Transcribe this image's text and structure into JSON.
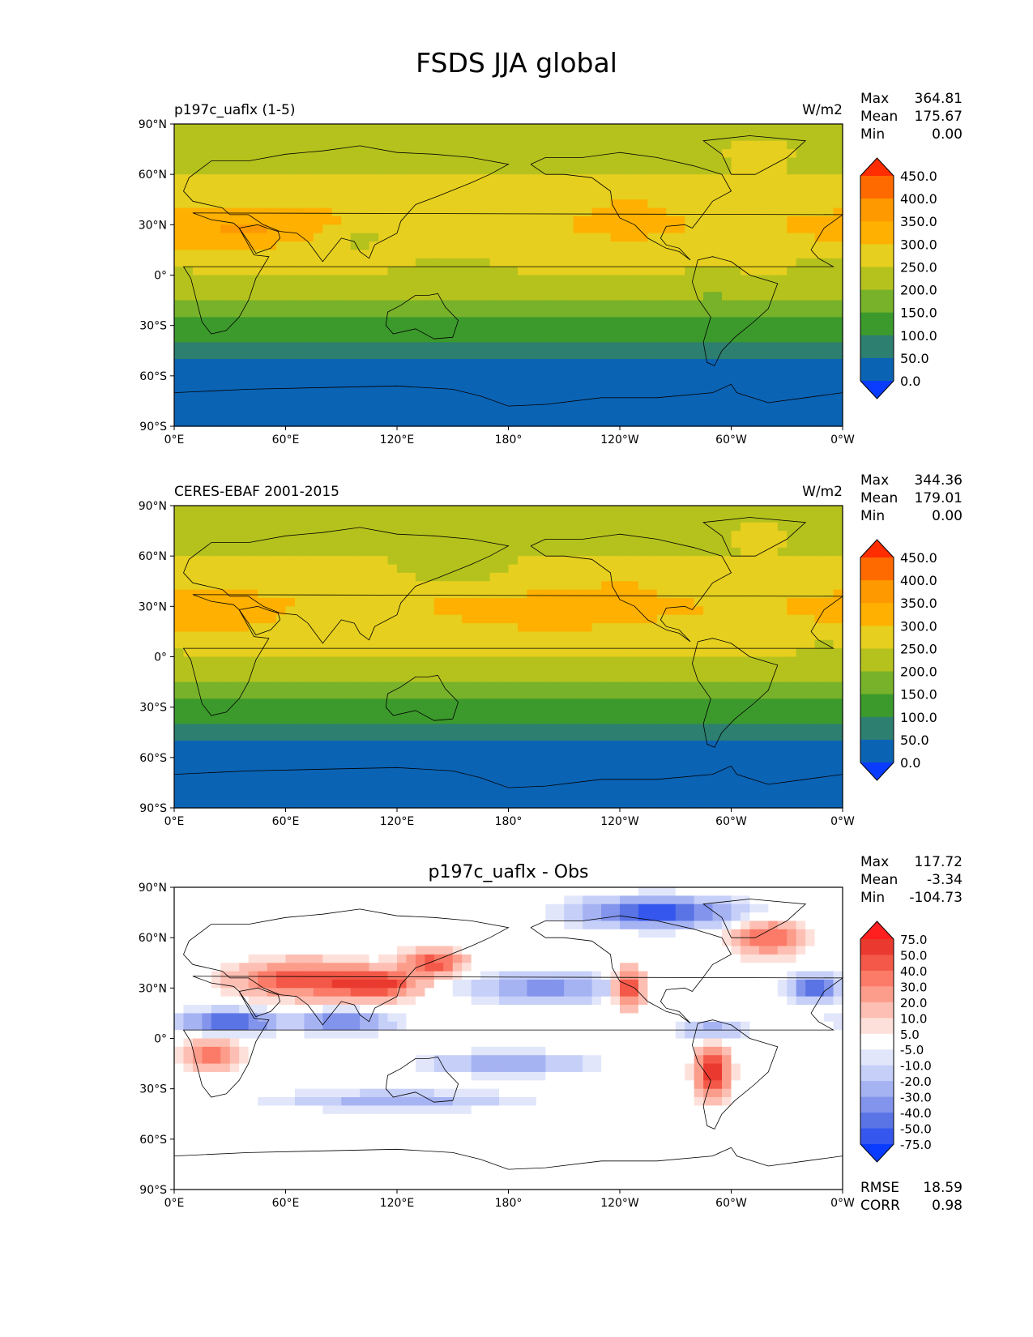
{
  "title": "FSDS JJA global",
  "panels": [
    {
      "left_label": "p197c_uaflx (1-5)",
      "center_label": "",
      "units": "W/m2",
      "stats": [
        {
          "label": "Max",
          "value": "364.81"
        },
        {
          "label": "Mean",
          "value": "175.67"
        },
        {
          "label": "Min",
          "value": "0.00"
        }
      ],
      "colorbar": {
        "levels": [
          "450.0",
          "400.0",
          "350.0",
          "300.0",
          "250.0",
          "200.0",
          "150.0",
          "100.0",
          "50.0",
          "0.0"
        ],
        "colors": [
          "#ff2d00",
          "#ff6a00",
          "#ff9900",
          "#ffb000",
          "#e6cf1e",
          "#b5c21d",
          "#77b22a",
          "#3c9a2c",
          "#2d7f6f",
          "#0b63b4",
          "#0a3cff"
        ]
      },
      "field": "model"
    },
    {
      "left_label": "CERES-EBAF 2001-2015",
      "center_label": "",
      "units": "W/m2",
      "stats": [
        {
          "label": "Max",
          "value": "344.36"
        },
        {
          "label": "Mean",
          "value": "179.01"
        },
        {
          "label": "Min",
          "value": "0.00"
        }
      ],
      "colorbar": {
        "levels": [
          "450.0",
          "400.0",
          "350.0",
          "300.0",
          "250.0",
          "200.0",
          "150.0",
          "100.0",
          "50.0",
          "0.0"
        ],
        "colors": [
          "#ff2d00",
          "#ff6a00",
          "#ff9900",
          "#ffb000",
          "#e6cf1e",
          "#b5c21d",
          "#77b22a",
          "#3c9a2c",
          "#2d7f6f",
          "#0b63b4",
          "#0a3cff"
        ]
      },
      "field": "obs"
    },
    {
      "left_label": "",
      "center_label": "p197c_uaflx - Obs",
      "units": "",
      "stats": [
        {
          "label": "Max",
          "value": "117.72"
        },
        {
          "label": "Mean",
          "value": "-3.34"
        },
        {
          "label": "Min",
          "value": "-104.73"
        }
      ],
      "colorbar": {
        "levels": [
          "75.0",
          "50.0",
          "40.0",
          "30.0",
          "20.0",
          "10.0",
          "5.0",
          "-5.0",
          "-10.0",
          "-20.0",
          "-30.0",
          "-40.0",
          "-50.0",
          "-75.0"
        ],
        "colors": [
          "#ff1f1f",
          "#ea3a2f",
          "#f45848",
          "#fb7b68",
          "#fc9d8c",
          "#fdbfb3",
          "#fee0da",
          "#ffffff",
          "#e1e6fb",
          "#c5cff8",
          "#a6b3f3",
          "#8294ec",
          "#5a74e6",
          "#3557ee",
          "#0a3cff"
        ]
      },
      "stats_bottom": [
        {
          "label": "RMSE",
          "value": "18.59"
        },
        {
          "label": "CORR",
          "value": "0.98"
        }
      ],
      "field": "diff"
    }
  ],
  "lat_ticks": [
    "90°N",
    "60°N",
    "30°N",
    "0°",
    "30°S",
    "60°S",
    "90°S"
  ],
  "lon_ticks": [
    "0°E",
    "60°E",
    "120°E",
    "180°",
    "120°W",
    "60°W",
    "0°W"
  ]
}
